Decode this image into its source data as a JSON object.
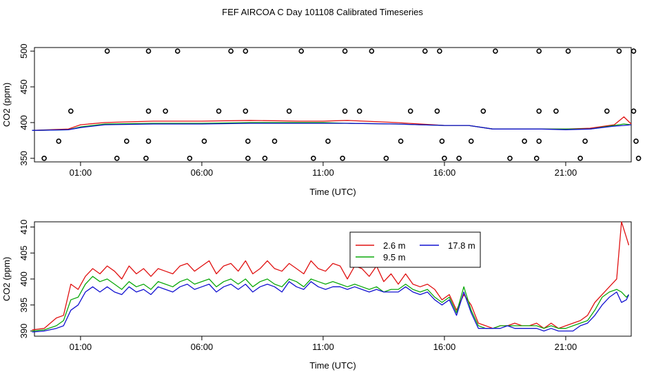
{
  "chart_data": [
    {
      "type": "scatter",
      "title": "FEF AIRCOA C  Day 101108  Calibrated Timeseries",
      "xlabel": "Time (UTC)",
      "ylabel": "CO2 (ppm)",
      "xlim": [
        -0.9,
        23.7
      ],
      "ylim": [
        345,
        505
      ],
      "x_ticks": [
        1,
        6,
        11,
        16,
        21
      ],
      "x_tick_labels": [
        "01:00",
        "06:00",
        "11:00",
        "16:00",
        "21:00"
      ],
      "y_ticks": [
        350,
        400,
        450,
        500
      ],
      "y_tick_labels": [
        "350",
        "400",
        "450",
        "500"
      ],
      "grid": false,
      "markers": {
        "y500": [
          2.1,
          3.8,
          5.0,
          7.2,
          7.8,
          10.1,
          11.9,
          13.0,
          15.2,
          15.8,
          18.1,
          19.9,
          21.1,
          23.2,
          23.8
        ],
        "y416": [
          0.6,
          3.8,
          4.5,
          6.7,
          7.8,
          9.6,
          11.9,
          12.5,
          14.6,
          15.7,
          17.6,
          19.9,
          20.6,
          22.7,
          23.8
        ],
        "y374": [
          0.1,
          2.9,
          3.8,
          6.1,
          7.9,
          9.0,
          11.2,
          14.2,
          15.9,
          17.1,
          19.3,
          19.9,
          21.8,
          23.9
        ],
        "y350": [
          -0.5,
          2.5,
          3.7,
          5.5,
          7.9,
          8.6,
          10.6,
          11.8,
          13.6,
          16.0,
          16.6,
          18.7,
          19.8,
          21.6,
          24.0
        ]
      },
      "series_colors": [
        "#e01010",
        "#0aa80a",
        "#1010d0"
      ],
      "series": [
        {
          "x": [
            -1.0,
            0.5,
            1.0,
            2.0,
            4.0,
            6.0,
            8.0,
            10.0,
            11.0,
            12.0,
            14.0,
            15.0,
            16.0,
            17.0,
            18.0,
            20.0,
            21.0,
            22.0,
            23.0,
            23.4,
            23.7
          ],
          "values": [
            389,
            391,
            397,
            400,
            402,
            402,
            403,
            402,
            402,
            403,
            400,
            398,
            396,
            396,
            391,
            391,
            391,
            392,
            397,
            408,
            398
          ]
        },
        {
          "x": [
            -1.0,
            0.5,
            1.0,
            2.0,
            4.0,
            6.0,
            8.0,
            10.0,
            11.0,
            12.0,
            14.0,
            15.0,
            16.0,
            17.0,
            18.0,
            20.0,
            21.0,
            22.0,
            23.0,
            23.4,
            23.7
          ],
          "values": [
            389,
            390,
            394,
            398,
            399,
            399,
            400,
            400,
            400,
            399,
            398,
            397,
            396,
            396,
            391,
            391,
            391,
            391,
            396,
            398,
            397
          ]
        },
        {
          "x": [
            -1.0,
            0.5,
            1.0,
            2.0,
            4.0,
            6.0,
            8.0,
            10.0,
            11.0,
            12.0,
            14.0,
            15.0,
            16.0,
            17.0,
            18.0,
            20.0,
            21.0,
            22.0,
            23.0,
            23.4,
            23.7
          ],
          "values": [
            389,
            390,
            393,
            397,
            398,
            398,
            399,
            399,
            399,
            399,
            398,
            397,
            396,
            396,
            391,
            391,
            390,
            391,
            395,
            396,
            397
          ]
        }
      ]
    },
    {
      "type": "line",
      "title": "",
      "xlabel": "Time (UTC)",
      "ylabel": "CO2 (ppm)",
      "xlim": [
        -0.9,
        23.7
      ],
      "ylim": [
        389,
        411
      ],
      "x_ticks": [
        1,
        6,
        11,
        16,
        21
      ],
      "x_tick_labels": [
        "01:00",
        "06:00",
        "11:00",
        "16:00",
        "21:00"
      ],
      "y_ticks": [
        390,
        395,
        400,
        405,
        410
      ],
      "y_tick_labels": [
        "390",
        "395",
        "400",
        "405",
        "410"
      ],
      "grid": false,
      "legend": {
        "placement": "top-center"
      },
      "series": [
        {
          "name": "2.6 m",
          "color": "#e01010",
          "x": [
            -1.0,
            -0.5,
            0.0,
            0.3,
            0.6,
            0.9,
            1.2,
            1.5,
            1.8,
            2.1,
            2.4,
            2.7,
            3.0,
            3.3,
            3.6,
            3.9,
            4.2,
            4.5,
            4.8,
            5.1,
            5.4,
            5.7,
            6.0,
            6.3,
            6.6,
            6.9,
            7.2,
            7.5,
            7.8,
            8.1,
            8.4,
            8.7,
            9.0,
            9.3,
            9.6,
            9.9,
            10.2,
            10.5,
            10.8,
            11.1,
            11.4,
            11.7,
            12.0,
            12.3,
            12.6,
            12.9,
            13.2,
            13.5,
            13.8,
            14.1,
            14.4,
            14.7,
            15.0,
            15.3,
            15.6,
            15.9,
            16.2,
            16.5,
            16.8,
            17.1,
            17.4,
            17.7,
            18.0,
            18.3,
            18.6,
            18.9,
            19.2,
            19.5,
            19.8,
            20.1,
            20.4,
            20.7,
            21.0,
            21.3,
            21.6,
            21.9,
            22.2,
            22.5,
            22.8,
            23.1,
            23.3,
            23.5,
            23.6
          ],
          "values": [
            390.2,
            390.5,
            392.5,
            393.0,
            399.0,
            398.0,
            400.5,
            402.0,
            401.0,
            402.5,
            401.5,
            400.0,
            402.5,
            401.0,
            402.0,
            400.5,
            402.0,
            401.5,
            401.0,
            402.5,
            403.0,
            401.5,
            402.5,
            403.5,
            401.0,
            402.5,
            403.0,
            401.5,
            403.5,
            401.0,
            402.0,
            403.5,
            402.0,
            401.5,
            403.0,
            402.0,
            401.0,
            403.5,
            402.0,
            401.5,
            403.0,
            402.5,
            400.0,
            402.5,
            402.0,
            400.5,
            402.5,
            399.5,
            401.0,
            399.0,
            401.0,
            399.0,
            398.5,
            399.0,
            398.0,
            396.0,
            397.0,
            394.0,
            397.0,
            395.0,
            391.5,
            391.0,
            390.5,
            391.0,
            391.0,
            391.5,
            391.0,
            391.0,
            391.5,
            390.5,
            391.5,
            390.5,
            391.0,
            391.5,
            392.0,
            393.0,
            395.5,
            397.0,
            398.5,
            400.0,
            411.0,
            408.0,
            406.5
          ]
        },
        {
          "name": "9.5 m",
          "color": "#0aa80a",
          "x": [
            -1.0,
            -0.5,
            0.0,
            0.3,
            0.6,
            0.9,
            1.2,
            1.5,
            1.8,
            2.1,
            2.4,
            2.7,
            3.0,
            3.3,
            3.6,
            3.9,
            4.2,
            4.5,
            4.8,
            5.1,
            5.4,
            5.7,
            6.0,
            6.3,
            6.6,
            6.9,
            7.2,
            7.5,
            7.8,
            8.1,
            8.4,
            8.7,
            9.0,
            9.3,
            9.6,
            9.9,
            10.2,
            10.5,
            10.8,
            11.1,
            11.4,
            11.7,
            12.0,
            12.3,
            12.6,
            12.9,
            13.2,
            13.5,
            13.8,
            14.1,
            14.4,
            14.7,
            15.0,
            15.3,
            15.6,
            15.9,
            16.2,
            16.5,
            16.8,
            17.1,
            17.4,
            17.7,
            18.0,
            18.3,
            18.6,
            18.9,
            19.2,
            19.5,
            19.8,
            20.1,
            20.4,
            20.7,
            21.0,
            21.3,
            21.6,
            21.9,
            22.2,
            22.5,
            22.8,
            23.1,
            23.3,
            23.5,
            23.6
          ],
          "values": [
            390.0,
            390.2,
            391.0,
            392.0,
            396.0,
            396.5,
            399.0,
            400.5,
            399.5,
            400.0,
            399.0,
            398.0,
            399.5,
            398.5,
            399.0,
            398.0,
            399.5,
            399.0,
            398.5,
            399.5,
            400.0,
            399.0,
            399.5,
            400.0,
            398.5,
            399.5,
            400.0,
            399.0,
            400.0,
            398.5,
            399.5,
            400.0,
            399.0,
            398.5,
            400.0,
            399.5,
            398.5,
            400.0,
            399.5,
            399.0,
            399.5,
            399.0,
            398.5,
            399.0,
            398.5,
            398.0,
            398.5,
            397.5,
            398.0,
            398.0,
            399.0,
            398.0,
            397.5,
            398.0,
            396.5,
            395.5,
            396.5,
            393.5,
            398.5,
            394.0,
            391.0,
            390.5,
            390.5,
            391.0,
            391.0,
            391.0,
            391.0,
            391.0,
            391.0,
            390.5,
            391.0,
            390.5,
            390.5,
            391.0,
            391.5,
            392.0,
            394.0,
            396.5,
            397.5,
            398.0,
            397.5,
            396.5,
            397.0
          ]
        },
        {
          "name": "17.8 m",
          "color": "#1010d0",
          "x": [
            -1.0,
            -0.5,
            0.0,
            0.3,
            0.6,
            0.9,
            1.2,
            1.5,
            1.8,
            2.1,
            2.4,
            2.7,
            3.0,
            3.3,
            3.6,
            3.9,
            4.2,
            4.5,
            4.8,
            5.1,
            5.4,
            5.7,
            6.0,
            6.3,
            6.6,
            6.9,
            7.2,
            7.5,
            7.8,
            8.1,
            8.4,
            8.7,
            9.0,
            9.3,
            9.6,
            9.9,
            10.2,
            10.5,
            10.8,
            11.1,
            11.4,
            11.7,
            12.0,
            12.3,
            12.6,
            12.9,
            13.2,
            13.5,
            13.8,
            14.1,
            14.4,
            14.7,
            15.0,
            15.3,
            15.6,
            15.9,
            16.2,
            16.5,
            16.8,
            17.1,
            17.4,
            17.7,
            18.0,
            18.3,
            18.6,
            18.9,
            19.2,
            19.5,
            19.8,
            20.1,
            20.4,
            20.7,
            21.0,
            21.3,
            21.6,
            21.9,
            22.2,
            22.5,
            22.8,
            23.1,
            23.3,
            23.5,
            23.6
          ],
          "values": [
            389.8,
            390.0,
            390.5,
            391.0,
            394.0,
            395.0,
            397.5,
            398.5,
            397.5,
            398.5,
            397.5,
            397.0,
            398.5,
            397.5,
            398.0,
            397.0,
            398.5,
            398.0,
            397.5,
            398.5,
            399.0,
            398.0,
            398.5,
            399.0,
            397.5,
            398.5,
            399.0,
            398.0,
            399.0,
            397.5,
            398.5,
            399.0,
            398.5,
            397.5,
            399.5,
            398.5,
            398.0,
            399.5,
            398.5,
            398.0,
            398.5,
            398.5,
            398.0,
            398.5,
            398.0,
            397.5,
            398.0,
            397.5,
            397.5,
            397.5,
            398.5,
            397.5,
            397.0,
            397.5,
            396.0,
            395.0,
            396.0,
            393.0,
            397.5,
            393.5,
            390.5,
            390.5,
            390.5,
            390.5,
            391.0,
            390.5,
            390.5,
            390.5,
            390.5,
            390.0,
            390.5,
            390.0,
            390.0,
            390.0,
            391.0,
            391.5,
            393.0,
            395.0,
            396.5,
            397.5,
            395.5,
            396.0,
            397.0
          ]
        }
      ]
    }
  ]
}
